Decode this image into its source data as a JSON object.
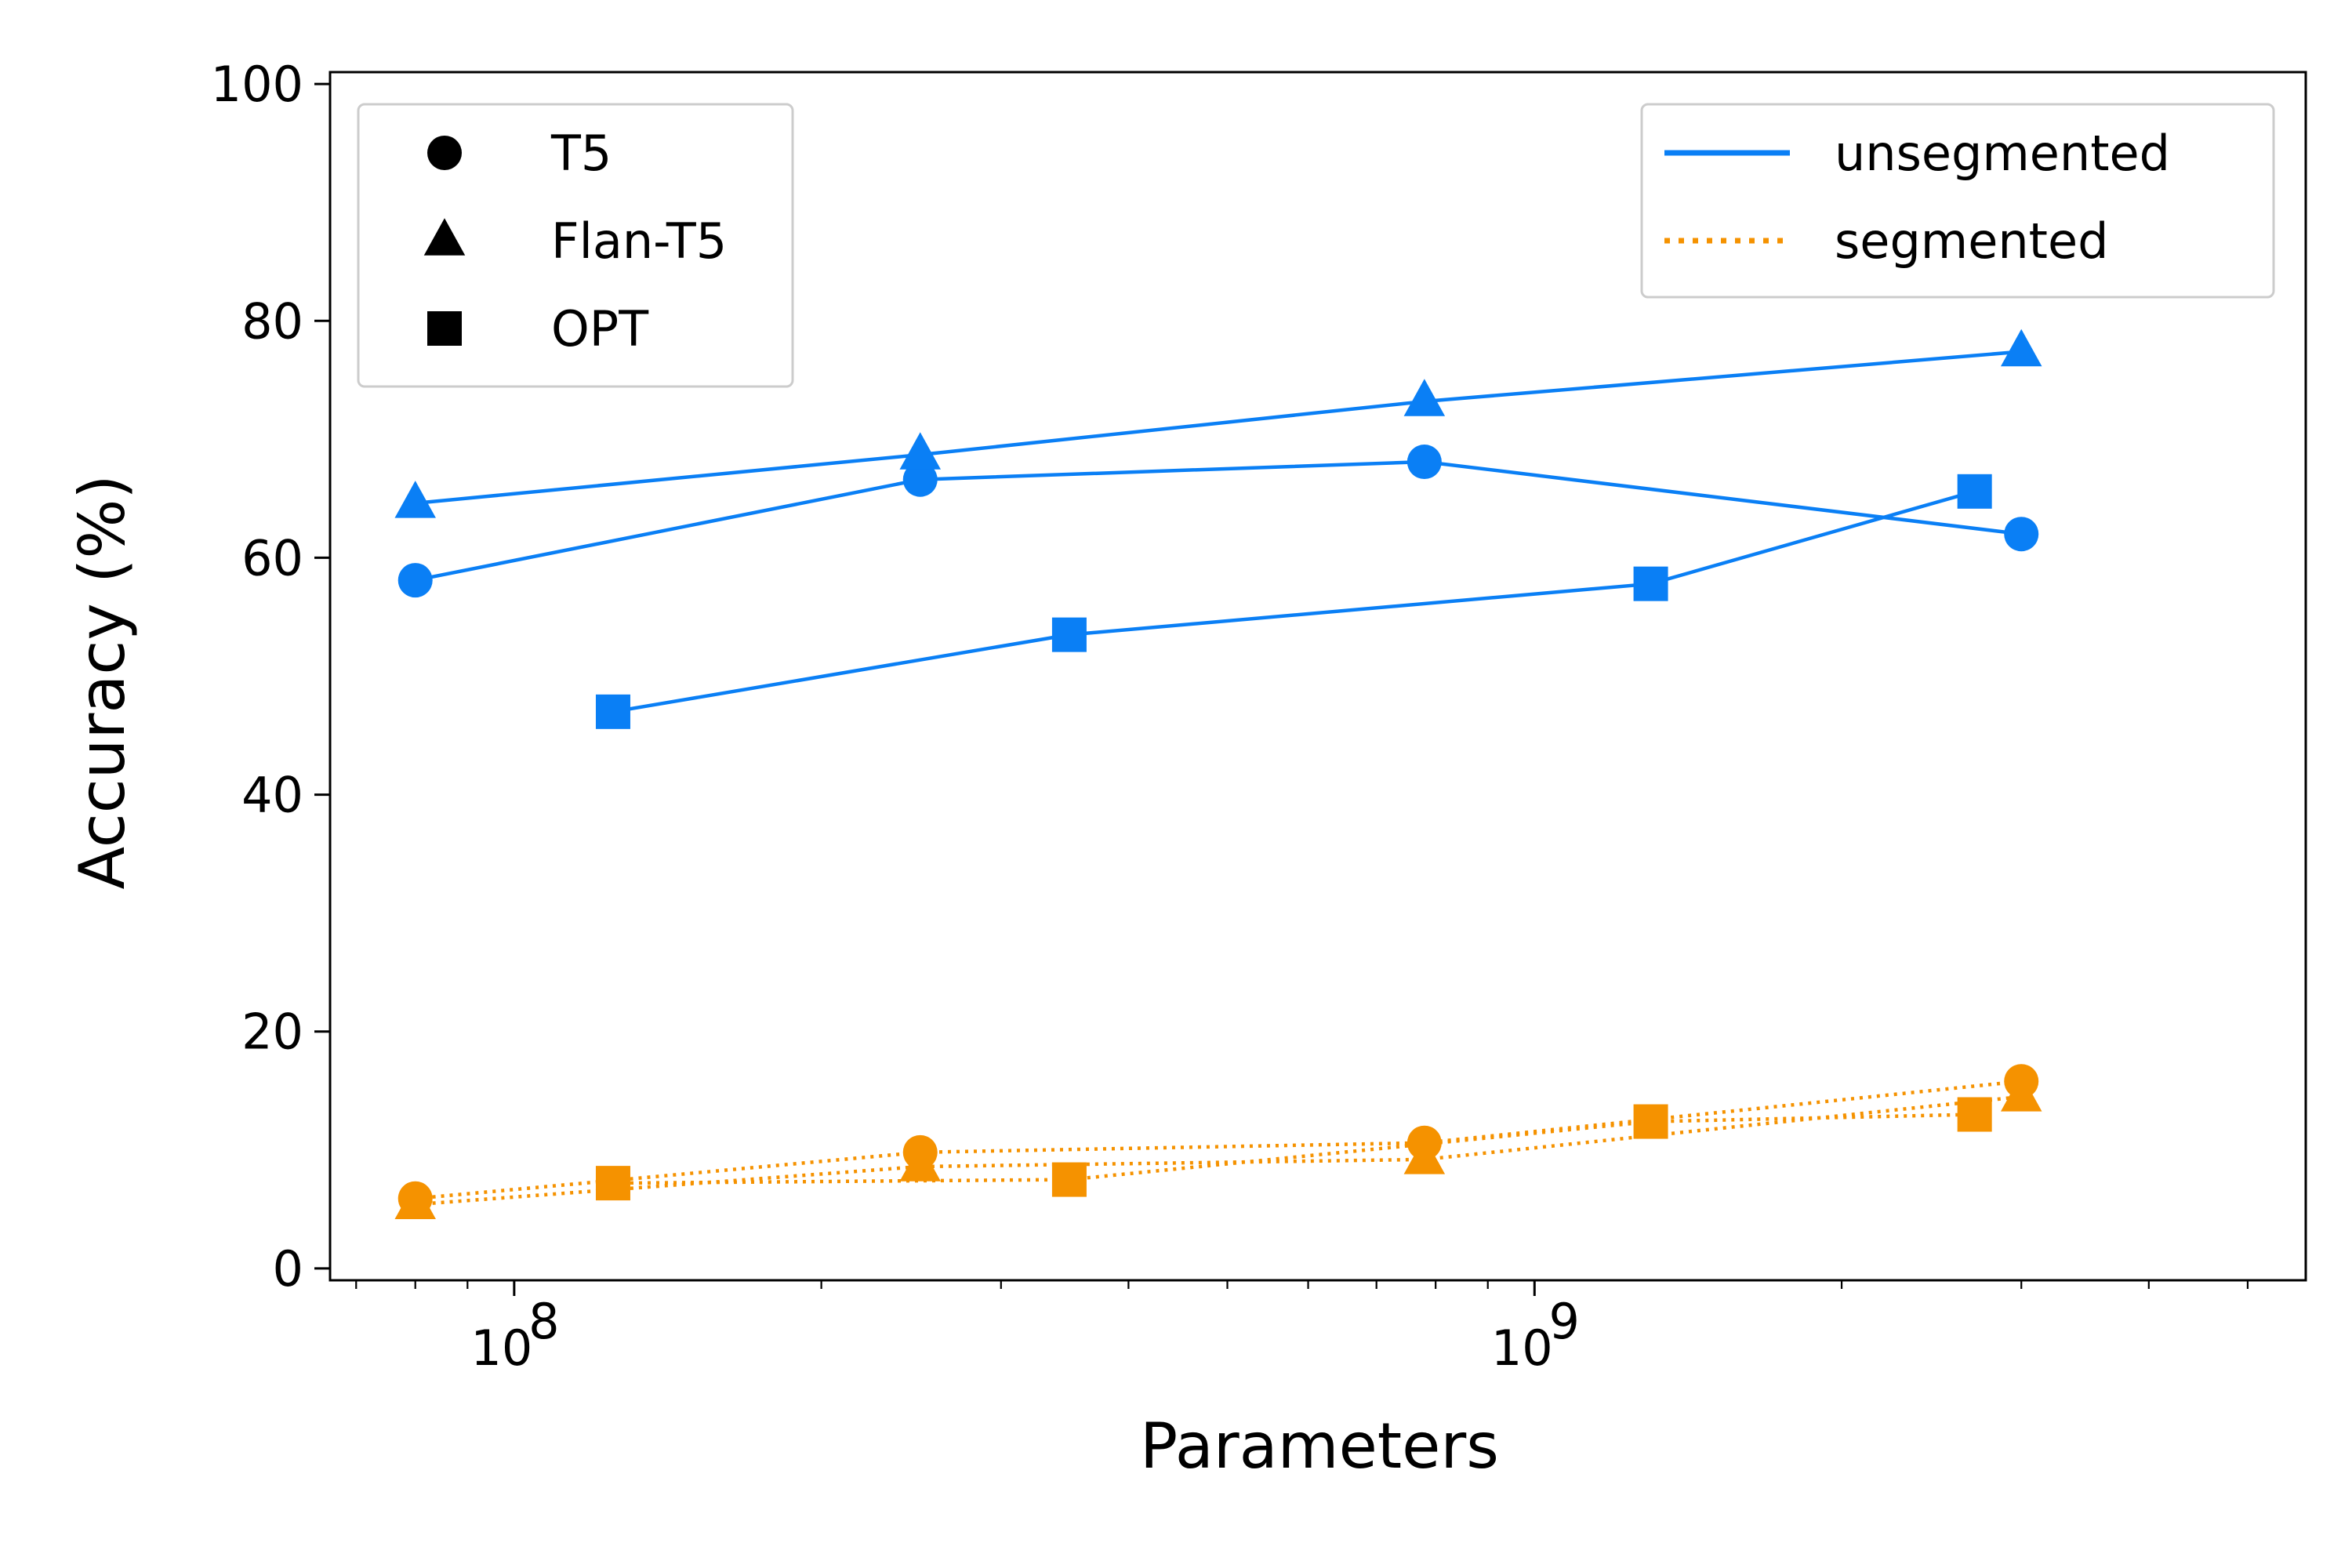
{
  "chart_data": {
    "type": "line",
    "title": "",
    "xlabel": "Parameters",
    "ylabel": "Accuracy (%)",
    "xscale": "log",
    "xlim": [
      66000000,
      5700000000
    ],
    "ylim": [
      -1,
      101
    ],
    "x_ticks": [
      {
        "value": 100000000,
        "base": "10",
        "exp": "8"
      },
      {
        "value": 1000000000,
        "base": "10",
        "exp": "9"
      }
    ],
    "y_ticks": [
      {
        "value": 0,
        "label": "0"
      },
      {
        "value": 20,
        "label": "20"
      },
      {
        "value": 40,
        "label": "40"
      },
      {
        "value": 60,
        "label": "60"
      },
      {
        "value": 80,
        "label": "80"
      },
      {
        "value": 100,
        "label": "100"
      }
    ],
    "grid": false,
    "colors": {
      "unsegmented": "#0a7ff5",
      "segmented": "#f59200",
      "legend_marker": "#000000",
      "frame": "#000000"
    },
    "series": [
      {
        "model": "T5",
        "setting": "unsegmented",
        "marker": "circle",
        "x": [
          80000000,
          250000000,
          780000000,
          3000000000
        ],
        "y": [
          58.1,
          66.6,
          68.1,
          62.0
        ]
      },
      {
        "model": "Flan-T5",
        "setting": "unsegmented",
        "marker": "triangle",
        "x": [
          80000000,
          250000000,
          780000000,
          3000000000
        ],
        "y": [
          64.6,
          68.7,
          73.2,
          77.4
        ]
      },
      {
        "model": "OPT",
        "setting": "unsegmented",
        "marker": "square",
        "x": [
          125000000,
          350000000,
          1300000000,
          2700000000
        ],
        "y": [
          47.0,
          53.5,
          57.8,
          65.6
        ]
      },
      {
        "model": "T5",
        "setting": "segmented",
        "marker": "circle",
        "x": [
          80000000,
          250000000,
          780000000,
          3000000000
        ],
        "y": [
          5.9,
          9.8,
          10.6,
          15.8
        ]
      },
      {
        "model": "Flan-T5",
        "setting": "segmented",
        "marker": "triangle",
        "x": [
          80000000,
          250000000,
          780000000,
          3000000000
        ],
        "y": [
          5.4,
          8.6,
          9.2,
          14.5
        ]
      },
      {
        "model": "OPT",
        "setting": "segmented",
        "marker": "square",
        "x": [
          125000000,
          350000000,
          1300000000,
          2700000000
        ],
        "y": [
          7.2,
          7.5,
          12.4,
          13.0
        ]
      }
    ],
    "legends": [
      {
        "placement": "upper-left",
        "entries": [
          {
            "label": "T5",
            "marker": "circle"
          },
          {
            "label": "Flan-T5",
            "marker": "triangle"
          },
          {
            "label": "OPT",
            "marker": "square"
          }
        ]
      },
      {
        "placement": "upper-right",
        "entries": [
          {
            "label": "unsegmented",
            "line": "solid"
          },
          {
            "label": "segmented",
            "line": "dotted"
          }
        ]
      }
    ]
  }
}
